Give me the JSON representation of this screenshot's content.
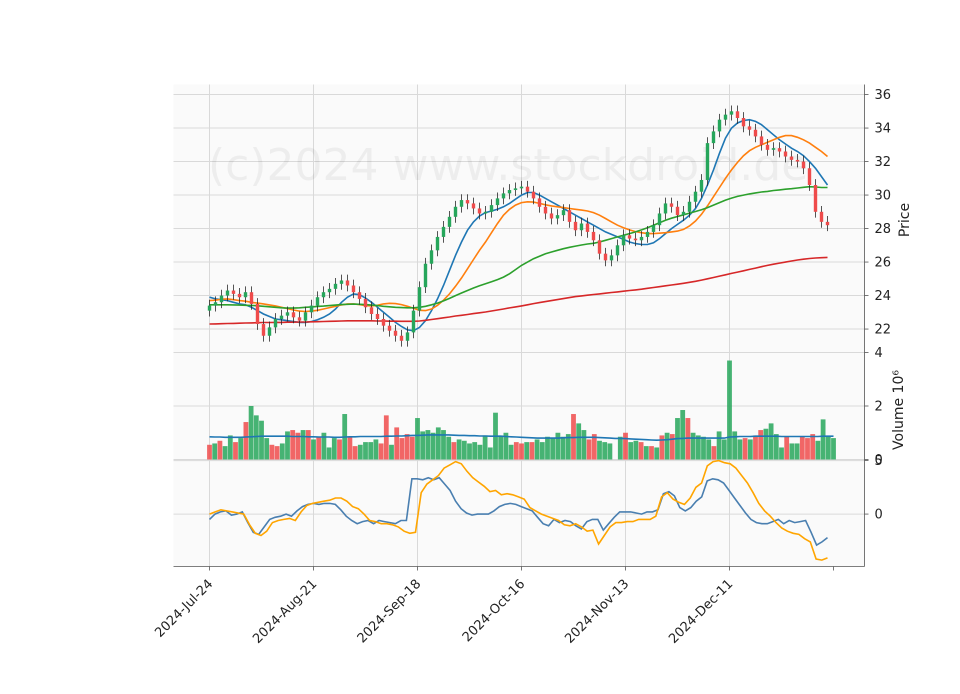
{
  "chart_data": [
    {
      "type": "candlestick",
      "panel": "price",
      "ylabel": "Price",
      "ylim": [
        20.6,
        36.6
      ],
      "yticks": [
        22,
        24,
        26,
        28,
        30,
        32,
        34,
        36
      ],
      "xticks": [
        "2024-Jul-24",
        "2024-Aug-21",
        "2024-Sep-18",
        "2024-Oct-16",
        "2024-Nov-13",
        "2024-Dec-11"
      ],
      "grid": true,
      "watermark": "(c)2024 www.stockdroid.de",
      "colors": {
        "up": "#26a65b",
        "down": "#ef4b4b",
        "ma1": "#1f77b4",
        "ma2": "#ff7f0e",
        "ma3": "#2ca02c",
        "ma4": "#d62728"
      },
      "close": [
        23.4,
        23.6,
        24.0,
        24.3,
        24.1,
        23.9,
        24.2,
        23.5,
        22.3,
        21.6,
        22.1,
        22.6,
        22.8,
        23.0,
        22.7,
        22.5,
        23.0,
        23.4,
        23.9,
        24.2,
        24.4,
        24.7,
        24.9,
        24.6,
        24.2,
        23.8,
        23.3,
        22.9,
        22.6,
        22.2,
        21.9,
        21.6,
        21.3,
        21.8,
        23.1,
        24.5,
        25.9,
        26.7,
        27.5,
        28.1,
        28.7,
        29.3,
        29.7,
        29.5,
        29.2,
        28.9,
        29.0,
        29.4,
        29.8,
        30.1,
        30.3,
        30.4,
        30.5,
        30.2,
        29.8,
        29.3,
        28.9,
        28.6,
        28.8,
        29.1,
        28.4,
        27.9,
        28.3,
        27.8,
        27.3,
        26.5,
        26.1,
        26.4,
        27.0,
        27.6,
        27.4,
        27.3,
        27.5,
        27.8,
        28.2,
        28.9,
        29.5,
        29.3,
        28.8,
        29.0,
        29.6,
        30.2,
        30.9,
        33.1,
        33.8,
        34.5,
        34.8,
        35.0,
        34.6,
        34.1,
        33.9,
        33.5,
        33.0,
        32.7,
        32.8,
        32.6,
        32.3,
        32.1,
        32.0,
        31.6,
        30.6,
        29.0,
        28.4,
        28.2
      ],
      "ma_lines": [
        {
          "values": [
            23.9,
            23.8,
            23.75,
            23.7,
            23.6,
            23.5,
            23.45,
            23.3,
            23.1,
            22.9,
            22.75,
            22.6,
            22.55,
            22.5,
            22.45,
            22.4,
            22.4,
            22.45,
            22.55,
            22.7,
            22.9,
            23.2,
            23.6,
            23.9,
            24.1,
            24.05,
            23.85,
            23.6,
            23.3,
            23.0,
            22.7,
            22.4,
            22.15,
            21.95,
            21.9,
            22.1,
            22.5,
            23.1,
            23.8,
            24.6,
            25.5,
            26.4,
            27.2,
            27.9,
            28.4,
            28.75,
            28.95,
            29.05,
            29.15,
            29.3,
            29.5,
            29.75,
            30.0,
            30.15,
            30.15,
            30.0,
            29.8,
            29.6,
            29.4,
            29.2,
            29.0,
            28.8,
            28.6,
            28.4,
            28.2,
            28.0,
            27.8,
            27.65,
            27.5,
            27.35,
            27.2,
            27.1,
            27.05,
            27.05,
            27.15,
            27.4,
            27.7,
            28.0,
            28.25,
            28.5,
            28.8,
            29.2,
            29.8,
            30.6,
            31.5,
            32.5,
            33.4,
            34.0,
            34.3,
            34.45,
            34.5,
            34.4,
            34.2,
            33.9,
            33.6,
            33.3,
            33.05,
            32.8,
            32.6,
            32.35,
            32.0,
            31.6,
            31.1,
            30.6
          ]
        },
        {
          "values": [
            23.7,
            23.72,
            23.78,
            23.8,
            23.75,
            23.7,
            23.66,
            23.6,
            23.55,
            23.5,
            23.44,
            23.38,
            23.3,
            23.22,
            23.14,
            23.07,
            23.05,
            23.07,
            23.12,
            23.2,
            23.28,
            23.36,
            23.44,
            23.5,
            23.5,
            23.46,
            23.4,
            23.38,
            23.42,
            23.5,
            23.54,
            23.52,
            23.46,
            23.36,
            23.24,
            23.12,
            23.1,
            23.2,
            23.42,
            23.72,
            24.1,
            24.55,
            25.05,
            25.6,
            26.15,
            26.7,
            27.2,
            27.75,
            28.3,
            28.8,
            29.15,
            29.4,
            29.55,
            29.6,
            29.58,
            29.5,
            29.42,
            29.35,
            29.3,
            29.25,
            29.2,
            29.15,
            29.1,
            29.05,
            28.95,
            28.8,
            28.6,
            28.4,
            28.2,
            28.05,
            27.92,
            27.82,
            27.75,
            27.7,
            27.7,
            27.72,
            27.75,
            27.8,
            27.85,
            27.95,
            28.15,
            28.45,
            28.85,
            29.35,
            29.9,
            30.45,
            31.0,
            31.5,
            31.95,
            32.35,
            32.65,
            32.85,
            33.0,
            33.15,
            33.3,
            33.45,
            33.55,
            33.55,
            33.45,
            33.3,
            33.1,
            32.85,
            32.6,
            32.3
          ]
        },
        {
          "values": [
            23.45,
            23.45,
            23.45,
            23.45,
            23.44,
            23.43,
            23.42,
            23.41,
            23.39,
            23.36,
            23.33,
            23.3,
            23.27,
            23.25,
            23.25,
            23.27,
            23.3,
            23.32,
            23.35,
            23.37,
            23.4,
            23.43,
            23.46,
            23.48,
            23.49,
            23.48,
            23.46,
            23.43,
            23.4,
            23.36,
            23.33,
            23.3,
            23.28,
            23.27,
            23.27,
            23.3,
            23.36,
            23.45,
            23.55,
            23.68,
            23.83,
            24.0,
            24.15,
            24.3,
            24.45,
            24.58,
            24.7,
            24.82,
            24.95,
            25.1,
            25.3,
            25.55,
            25.8,
            26.0,
            26.2,
            26.35,
            26.5,
            26.6,
            26.7,
            26.8,
            26.88,
            26.95,
            27.02,
            27.08,
            27.12,
            27.2,
            27.3,
            27.4,
            27.5,
            27.6,
            27.7,
            27.8,
            27.92,
            28.05,
            28.2,
            28.35,
            28.5,
            28.62,
            28.72,
            28.82,
            28.92,
            29.02,
            29.12,
            29.25,
            29.4,
            29.55,
            29.7,
            29.82,
            29.92,
            30.0,
            30.07,
            30.13,
            30.18,
            30.22,
            30.27,
            30.31,
            30.35,
            30.38,
            30.42,
            30.46,
            30.5,
            30.48,
            30.45,
            30.45
          ]
        },
        {
          "values": [
            22.3,
            22.31,
            22.32,
            22.33,
            22.34,
            22.35,
            22.36,
            22.37,
            22.38,
            22.39,
            22.39,
            22.4,
            22.4,
            22.41,
            22.41,
            22.42,
            22.42,
            22.43,
            22.44,
            22.45,
            22.46,
            22.47,
            22.48,
            22.49,
            22.49,
            22.49,
            22.49,
            22.49,
            22.48,
            22.48,
            22.47,
            22.47,
            22.46,
            22.46,
            22.46,
            22.48,
            22.52,
            22.57,
            22.62,
            22.67,
            22.72,
            22.78,
            22.82,
            22.87,
            22.92,
            22.97,
            23.02,
            23.08,
            23.14,
            23.2,
            23.26,
            23.32,
            23.38,
            23.45,
            23.52,
            23.58,
            23.64,
            23.7,
            23.76,
            23.82,
            23.88,
            23.94,
            23.98,
            24.02,
            24.06,
            24.1,
            24.14,
            24.18,
            24.22,
            24.26,
            24.3,
            24.34,
            24.38,
            24.43,
            24.48,
            24.53,
            24.58,
            24.63,
            24.68,
            24.73,
            24.79,
            24.85,
            24.92,
            25.0,
            25.08,
            25.16,
            25.24,
            25.32,
            25.4,
            25.48,
            25.56,
            25.64,
            25.72,
            25.8,
            25.87,
            25.94,
            26.0,
            26.06,
            26.12,
            26.17,
            26.21,
            26.24,
            26.26,
            26.28
          ]
        }
      ]
    },
    {
      "type": "bar",
      "panel": "volume",
      "ylabel": "Volume  10⁶",
      "ylim": [
        0,
        4
      ],
      "yticks": [
        0,
        2,
        4
      ],
      "values": [
        0.55,
        0.6,
        0.7,
        0.5,
        0.9,
        0.65,
        0.8,
        1.4,
        2.0,
        1.65,
        1.45,
        0.8,
        0.55,
        0.5,
        0.6,
        1.05,
        1.1,
        1.0,
        1.1,
        1.1,
        0.75,
        0.85,
        1.0,
        0.45,
        0.8,
        0.75,
        1.7,
        0.85,
        0.5,
        0.55,
        0.65,
        0.65,
        0.75,
        0.6,
        1.65,
        0.55,
        1.2,
        0.8,
        0.95,
        0.85,
        1.55,
        1.05,
        1.1,
        1.0,
        1.2,
        1.1,
        0.85,
        0.65,
        0.75,
        0.7,
        0.6,
        0.65,
        0.55,
        0.9,
        0.45,
        1.75,
        0.9,
        1.0,
        0.55,
        0.65,
        0.6,
        0.65,
        0.65,
        0.75,
        0.65,
        0.85,
        0.8,
        1.0,
        0.85,
        0.95,
        1.7,
        1.35,
        1.1,
        0.75,
        0.95,
        0.7,
        0.65,
        0.6,
        0.0,
        0.85,
        1.0,
        0.65,
        0.7,
        0.65,
        0.5,
        0.5,
        0.45,
        0.9,
        1.0,
        0.95,
        1.55,
        1.85,
        1.55,
        1.0,
        0.9,
        0.85,
        0.75,
        0.5,
        1.05,
        0.75,
        3.7,
        1.05,
        0.75,
        0.8,
        0.75,
        0.9,
        1.1,
        1.15,
        1.35,
        0.95,
        0.45,
        0.85,
        0.6,
        0.6,
        0.85,
        0.8,
        0.95,
        0.7,
        1.5,
        0.85,
        0.8
      ],
      "ma": [
        0.85,
        0.84,
        0.84,
        0.83,
        0.83,
        0.83,
        0.83,
        0.84,
        0.85,
        0.86,
        0.87,
        0.87,
        0.87,
        0.87,
        0.87,
        0.87,
        0.86,
        0.86,
        0.86,
        0.85,
        0.85,
        0.84,
        0.84,
        0.84,
        0.83,
        0.83,
        0.84,
        0.85,
        0.85,
        0.86,
        0.86,
        0.86,
        0.86,
        0.86,
        0.87,
        0.87,
        0.88,
        0.88,
        0.89,
        0.9,
        0.9,
        0.91,
        0.92,
        0.92,
        0.92,
        0.92,
        0.92,
        0.91,
        0.9,
        0.9,
        0.89,
        0.89,
        0.88,
        0.88,
        0.87,
        0.87,
        0.87,
        0.86,
        0.85,
        0.84,
        0.83,
        0.82,
        0.81,
        0.8,
        0.8,
        0.8,
        0.8,
        0.8,
        0.81,
        0.82,
        0.82,
        0.83,
        0.83,
        0.83,
        0.83,
        0.82,
        0.81,
        0.8,
        0.79,
        0.79,
        0.78,
        0.77,
        0.76,
        0.75,
        0.74,
        0.73,
        0.72,
        0.73,
        0.74,
        0.76,
        0.78,
        0.79,
        0.8,
        0.8,
        0.8,
        0.8,
        0.8,
        0.8,
        0.8,
        0.8,
        0.84,
        0.85,
        0.86,
        0.86,
        0.86,
        0.87,
        0.87,
        0.87,
        0.87,
        0.87,
        0.86,
        0.86,
        0.86,
        0.86,
        0.86,
        0.86,
        0.86,
        0.86,
        0.87,
        0.87,
        0.87
      ],
      "colors": {
        "up": "#26a65b",
        "down": "#ef4b4b",
        "ma": "#1f77b4"
      }
    },
    {
      "type": "line",
      "panel": "oscillator",
      "ylim": [
        -4.9,
        5.1
      ],
      "yticks": [
        0,
        5
      ],
      "colors": {
        "line1": "#4a7fb0",
        "line2": "#ffa500"
      },
      "series": [
        {
          "values": [
            -0.5,
            0.0,
            0.2,
            0.3,
            -0.1,
            0.0,
            0.2,
            -0.8,
            -1.7,
            -1.9,
            -1.2,
            -0.5,
            -0.3,
            -0.2,
            0.0,
            -0.2,
            0.3,
            0.7,
            0.9,
            1.0,
            0.9,
            1.0,
            1.0,
            0.9,
            0.4,
            -0.2,
            -0.6,
            -0.9,
            -0.7,
            -0.6,
            -0.9,
            -0.6,
            -0.7,
            -0.8,
            -0.9,
            -0.6,
            -0.6,
            3.3,
            3.3,
            3.2,
            3.4,
            3.2,
            3.4,
            2.8,
            2.2,
            1.2,
            0.5,
            0.1,
            -0.1,
            0.0,
            0.0,
            0.0,
            0.3,
            0.7,
            0.9,
            1.0,
            0.9,
            0.7,
            0.5,
            0.3,
            -0.3,
            -0.9,
            -1.1,
            -0.5,
            -0.8,
            -0.6,
            -0.7,
            -1.1,
            -1.4,
            -0.7,
            -0.5,
            -0.5,
            -1.5,
            -0.9,
            -0.3,
            0.2,
            0.2,
            0.2,
            0.1,
            0.0,
            0.2,
            0.2,
            0.4,
            1.9,
            2.1,
            1.7,
            0.6,
            0.3,
            0.6,
            1.2,
            1.6,
            3.1,
            3.3,
            3.2,
            2.9,
            2.2,
            1.5,
            0.8,
            0.1,
            -0.5,
            -0.8,
            -0.9,
            -0.9,
            -0.7,
            -0.5,
            -0.9,
            -0.6,
            -0.8,
            -0.7,
            -0.6,
            -1.7,
            -2.9,
            -2.6,
            -2.2
          ]
        },
        {
          "values": [
            0.0,
            0.2,
            0.4,
            0.3,
            0.2,
            0.1,
            0.0,
            -1.0,
            -1.8,
            -2.0,
            -1.6,
            -0.8,
            -0.6,
            -0.5,
            -0.4,
            -0.6,
            0.2,
            0.8,
            1.0,
            1.1,
            1.2,
            1.3,
            1.5,
            1.5,
            1.2,
            0.7,
            0.5,
            0.0,
            -0.6,
            -0.7,
            -0.9,
            -0.9,
            -1.0,
            -1.2,
            -1.6,
            -1.8,
            -1.7,
            2.0,
            2.8,
            3.2,
            3.6,
            4.3,
            4.6,
            4.9,
            4.7,
            4.0,
            3.4,
            3.0,
            2.6,
            2.1,
            2.2,
            1.8,
            1.9,
            1.8,
            1.6,
            1.4,
            0.6,
            0.3,
            0.0,
            -0.2,
            -0.4,
            -0.6,
            -1.0,
            -1.1,
            -0.9,
            -1.2,
            -1.6,
            -1.5,
            -2.8,
            -2.0,
            -1.2,
            -0.8,
            -0.8,
            -0.7,
            -0.7,
            -0.5,
            -0.5,
            -0.5,
            -0.2,
            1.6,
            2.0,
            1.4,
            1.1,
            0.9,
            1.5,
            2.5,
            2.9,
            4.5,
            4.9,
            5.0,
            4.8,
            4.7,
            4.3,
            3.6,
            2.9,
            2.0,
            1.0,
            0.3,
            -0.2,
            -0.8,
            -1.3,
            -1.6,
            -1.8,
            -1.9,
            -2.3,
            -2.6,
            -4.2,
            -4.3,
            -4.1
          ]
        }
      ]
    }
  ]
}
